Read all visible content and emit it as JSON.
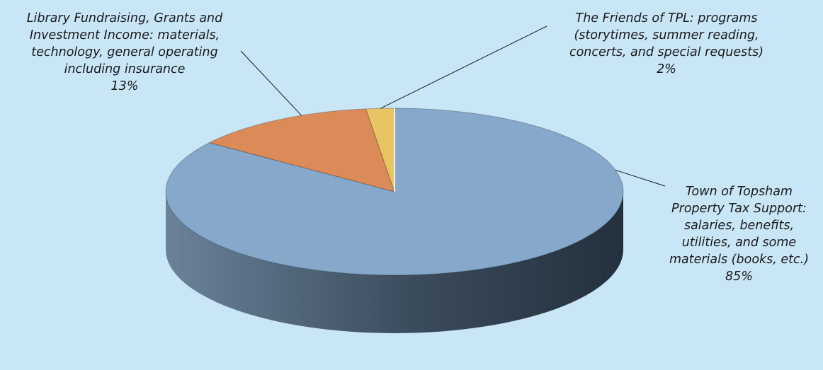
{
  "chart_data": {
    "type": "pie",
    "title": "",
    "slices": [
      {
        "name": "Town of Topsham\nProperty Tax Support:\nsalaries, benefits,\nutilities, and some\nmaterials (books, etc.)",
        "percent_label": "85%",
        "value": 85,
        "color": "#85a8cb"
      },
      {
        "name": "Library Fundraising, Grants and\nInvestment Income: materials,\ntechnology, general operating\nincluding insurance",
        "percent_label": "13%",
        "value": 13,
        "color": "#dc8b58"
      },
      {
        "name": "The Friends of TPL: programs\n(storytimes, summer reading,\nconcerts, and special requests)",
        "percent_label": "2%",
        "value": 2,
        "color": "#e8c564"
      }
    ],
    "style": "3d-pie",
    "background_color": "#c9e6f7",
    "side_colors": {
      "left": "#6b8299",
      "right": "#24303d"
    }
  }
}
